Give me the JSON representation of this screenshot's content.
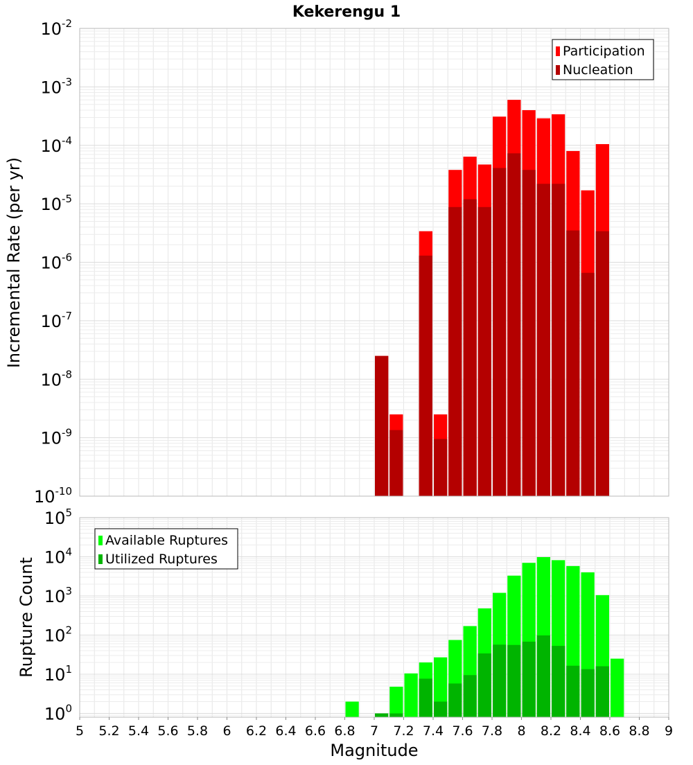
{
  "chart_data": [
    {
      "type": "bar",
      "title": "Kekerengu 1",
      "ylabel": "Incremental Rate (per yr)",
      "yscale": "log",
      "ylim": [
        1e-10,
        0.01
      ],
      "xlim": [
        5,
        9
      ],
      "bin_width": 0.1,
      "ytick_bases": [
        "10",
        "10",
        "10",
        "10",
        "10",
        "10",
        "10",
        "10",
        "10"
      ],
      "ytick_exponents": [
        "-10",
        "-9",
        "-8",
        "-7",
        "-6",
        "-5",
        "-4",
        "-3",
        "-2"
      ],
      "grid": true,
      "legend": {
        "placement": "top-right",
        "entries": [
          "Participation",
          "Nucleation"
        ]
      },
      "series": [
        {
          "name": "Participation",
          "color": "#ff0000",
          "x": [
            7.05,
            7.15,
            7.35,
            7.45,
            7.55,
            7.65,
            7.75,
            7.85,
            7.95,
            8.05,
            8.15,
            8.25,
            8.35,
            8.45,
            8.55
          ],
          "values": [
            2.5e-08,
            2.5e-09,
            3.4e-06,
            2.5e-09,
            3.8e-05,
            6.4e-05,
            4.7e-05,
            0.00031,
            0.0006,
            0.0004,
            0.00029,
            0.00034,
            8e-05,
            1.7e-05,
            0.000105
          ]
        },
        {
          "name": "Nucleation",
          "color": "#b40000",
          "x": [
            7.05,
            7.15,
            7.35,
            7.45,
            7.55,
            7.65,
            7.75,
            7.85,
            7.95,
            8.05,
            8.15,
            8.25,
            8.35,
            8.45,
            8.55
          ],
          "values": [
            2.5e-08,
            1.35e-09,
            1.3e-06,
            9.5e-10,
            8.8e-06,
            1.2e-05,
            8.8e-06,
            4.1e-05,
            7.3e-05,
            3.8e-05,
            2.2e-05,
            2.2e-05,
            3.5e-06,
            6.6e-07,
            3.4e-06
          ]
        }
      ]
    },
    {
      "type": "bar",
      "title": "",
      "xlabel": "Magnitude",
      "ylabel": "Rupture Count",
      "yscale": "log",
      "ylim": [
        0.8,
        100000.0
      ],
      "xlim": [
        5,
        9
      ],
      "bin_width": 0.1,
      "ytick_bases": [
        "10",
        "10",
        "10",
        "10",
        "10",
        "10"
      ],
      "ytick_exponents": [
        "0",
        "1",
        "2",
        "3",
        "4",
        "5"
      ],
      "xtick_labels": [
        "5",
        "5.2",
        "5.4",
        "5.6",
        "5.8",
        "6",
        "6.2",
        "6.4",
        "6.6",
        "6.8",
        "7",
        "7.2",
        "7.4",
        "7.6",
        "7.8",
        "8",
        "8.2",
        "8.4",
        "8.6",
        "8.8",
        "9"
      ],
      "grid": true,
      "legend": {
        "placement": "top-left",
        "entries": [
          "Available Ruptures",
          "Utilized Ruptures"
        ]
      },
      "series": [
        {
          "name": "Available Ruptures",
          "color": "#00ff00",
          "x": [
            6.85,
            7.15,
            7.25,
            7.35,
            7.45,
            7.55,
            7.65,
            7.75,
            7.85,
            7.95,
            8.05,
            8.15,
            8.25,
            8.35,
            8.45,
            8.55,
            8.65
          ],
          "values": [
            2,
            4.8,
            10.5,
            20,
            27,
            75,
            170,
            480,
            1200,
            3300,
            7000,
            9800,
            8200,
            5800,
            4000,
            1050,
            25
          ]
        },
        {
          "name": "Utilized Ruptures",
          "color": "#00b400",
          "x": [
            7.05,
            7.15,
            7.35,
            7.45,
            7.55,
            7.65,
            7.75,
            7.85,
            7.95,
            8.05,
            8.15,
            8.25,
            8.35,
            8.45,
            8.55
          ],
          "values": [
            1,
            1,
            7.7,
            2,
            5.8,
            9.5,
            34,
            57,
            56,
            68,
            98,
            53,
            16.5,
            13.5,
            16
          ]
        }
      ]
    }
  ]
}
